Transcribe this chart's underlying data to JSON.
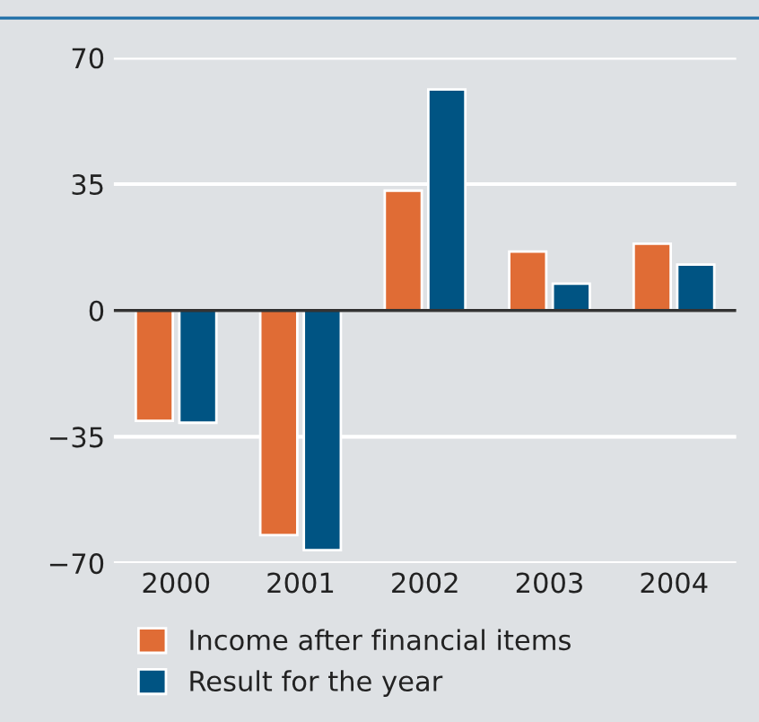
{
  "chart_data": {
    "type": "bar",
    "categories": [
      "2000",
      "2001",
      "2002",
      "2003",
      "2004"
    ],
    "series": [
      {
        "name": "Income after financial items",
        "color": "#e06c35",
        "values": [
          -30.6,
          -62.2,
          33.2,
          16.3,
          18.5
        ]
      },
      {
        "name": "Result for the year",
        "color": "#005483",
        "values": [
          -31.1,
          -66.4,
          61.2,
          7.4,
          12.7
        ]
      }
    ],
    "ylim": [
      -70,
      70
    ],
    "yticks": [
      {
        "value": -70,
        "label": "−70"
      },
      {
        "value": -35,
        "label": "−35"
      },
      0,
      35,
      70
    ],
    "ref_lines": [
      {
        "axis": "y",
        "value": 0,
        "color": "#333333"
      }
    ],
    "grid": "y",
    "legend": "bottom"
  }
}
